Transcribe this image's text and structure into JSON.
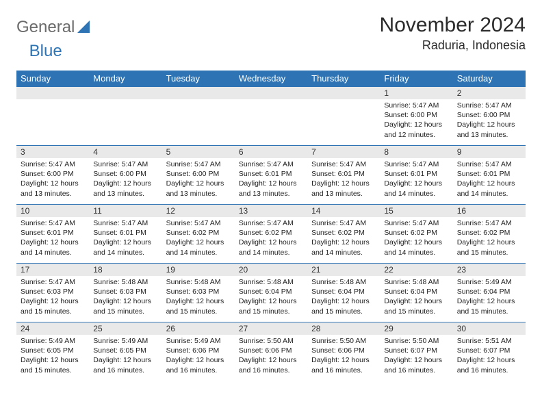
{
  "logo": {
    "word1": "General",
    "word2": "Blue"
  },
  "title": "November 2024",
  "subtitle": "Raduria, Indonesia",
  "weekdays": [
    "Sunday",
    "Monday",
    "Tuesday",
    "Wednesday",
    "Thursday",
    "Friday",
    "Saturday"
  ],
  "colors": {
    "header_bg": "#2e74b5",
    "header_fg": "#ffffff",
    "stripe": "#e9e9e9",
    "row_border": "#2e74b5",
    "body_text": "#222222"
  },
  "days": [
    {
      "n": 1,
      "sunrise": "5:47 AM",
      "sunset": "6:00 PM",
      "daylight": "12 hours and 12 minutes."
    },
    {
      "n": 2,
      "sunrise": "5:47 AM",
      "sunset": "6:00 PM",
      "daylight": "12 hours and 13 minutes."
    },
    {
      "n": 3,
      "sunrise": "5:47 AM",
      "sunset": "6:00 PM",
      "daylight": "12 hours and 13 minutes."
    },
    {
      "n": 4,
      "sunrise": "5:47 AM",
      "sunset": "6:00 PM",
      "daylight": "12 hours and 13 minutes."
    },
    {
      "n": 5,
      "sunrise": "5:47 AM",
      "sunset": "6:00 PM",
      "daylight": "12 hours and 13 minutes."
    },
    {
      "n": 6,
      "sunrise": "5:47 AM",
      "sunset": "6:01 PM",
      "daylight": "12 hours and 13 minutes."
    },
    {
      "n": 7,
      "sunrise": "5:47 AM",
      "sunset": "6:01 PM",
      "daylight": "12 hours and 13 minutes."
    },
    {
      "n": 8,
      "sunrise": "5:47 AM",
      "sunset": "6:01 PM",
      "daylight": "12 hours and 14 minutes."
    },
    {
      "n": 9,
      "sunrise": "5:47 AM",
      "sunset": "6:01 PM",
      "daylight": "12 hours and 14 minutes."
    },
    {
      "n": 10,
      "sunrise": "5:47 AM",
      "sunset": "6:01 PM",
      "daylight": "12 hours and 14 minutes."
    },
    {
      "n": 11,
      "sunrise": "5:47 AM",
      "sunset": "6:01 PM",
      "daylight": "12 hours and 14 minutes."
    },
    {
      "n": 12,
      "sunrise": "5:47 AM",
      "sunset": "6:02 PM",
      "daylight": "12 hours and 14 minutes."
    },
    {
      "n": 13,
      "sunrise": "5:47 AM",
      "sunset": "6:02 PM",
      "daylight": "12 hours and 14 minutes."
    },
    {
      "n": 14,
      "sunrise": "5:47 AM",
      "sunset": "6:02 PM",
      "daylight": "12 hours and 14 minutes."
    },
    {
      "n": 15,
      "sunrise": "5:47 AM",
      "sunset": "6:02 PM",
      "daylight": "12 hours and 14 minutes."
    },
    {
      "n": 16,
      "sunrise": "5:47 AM",
      "sunset": "6:02 PM",
      "daylight": "12 hours and 15 minutes."
    },
    {
      "n": 17,
      "sunrise": "5:47 AM",
      "sunset": "6:03 PM",
      "daylight": "12 hours and 15 minutes."
    },
    {
      "n": 18,
      "sunrise": "5:48 AM",
      "sunset": "6:03 PM",
      "daylight": "12 hours and 15 minutes."
    },
    {
      "n": 19,
      "sunrise": "5:48 AM",
      "sunset": "6:03 PM",
      "daylight": "12 hours and 15 minutes."
    },
    {
      "n": 20,
      "sunrise": "5:48 AM",
      "sunset": "6:04 PM",
      "daylight": "12 hours and 15 minutes."
    },
    {
      "n": 21,
      "sunrise": "5:48 AM",
      "sunset": "6:04 PM",
      "daylight": "12 hours and 15 minutes."
    },
    {
      "n": 22,
      "sunrise": "5:48 AM",
      "sunset": "6:04 PM",
      "daylight": "12 hours and 15 minutes."
    },
    {
      "n": 23,
      "sunrise": "5:49 AM",
      "sunset": "6:04 PM",
      "daylight": "12 hours and 15 minutes."
    },
    {
      "n": 24,
      "sunrise": "5:49 AM",
      "sunset": "6:05 PM",
      "daylight": "12 hours and 15 minutes."
    },
    {
      "n": 25,
      "sunrise": "5:49 AM",
      "sunset": "6:05 PM",
      "daylight": "12 hours and 16 minutes."
    },
    {
      "n": 26,
      "sunrise": "5:49 AM",
      "sunset": "6:06 PM",
      "daylight": "12 hours and 16 minutes."
    },
    {
      "n": 27,
      "sunrise": "5:50 AM",
      "sunset": "6:06 PM",
      "daylight": "12 hours and 16 minutes."
    },
    {
      "n": 28,
      "sunrise": "5:50 AM",
      "sunset": "6:06 PM",
      "daylight": "12 hours and 16 minutes."
    },
    {
      "n": 29,
      "sunrise": "5:50 AM",
      "sunset": "6:07 PM",
      "daylight": "12 hours and 16 minutes."
    },
    {
      "n": 30,
      "sunrise": "5:51 AM",
      "sunset": "6:07 PM",
      "daylight": "12 hours and 16 minutes."
    }
  ],
  "labels": {
    "sunrise": "Sunrise:",
    "sunset": "Sunset:",
    "daylight": "Daylight:"
  },
  "layout": {
    "first_weekday_col": 5,
    "rows": 5,
    "cols": 7
  }
}
